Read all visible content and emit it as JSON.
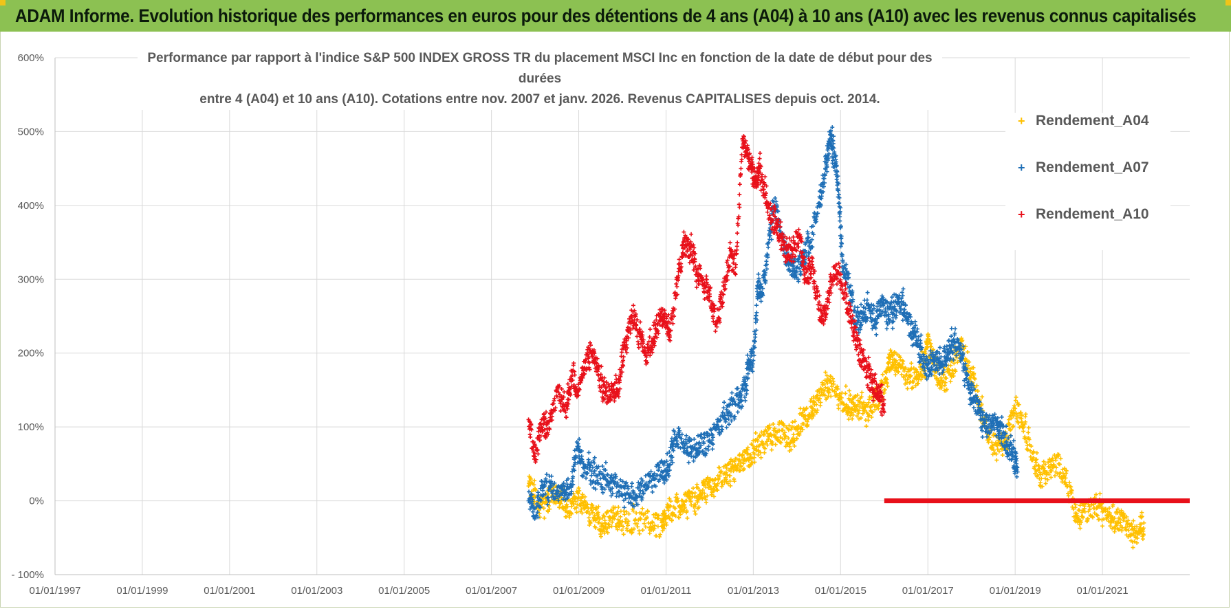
{
  "banner": {
    "title": "ADAM Informe. Evolution historique des performances en euros pour des détentions de 4 ans (A04) à 10 ans (A10) avec les revenus connus capitalisés",
    "color": "#8cc152"
  },
  "chart_data": {
    "type": "scatter",
    "title_line1": "Performance par rapport à l'indice S&P 500 INDEX GROSS TR  du placement MSCI Inc en fonction de la date de début pour des durées",
    "title_line2": "entre 4 (A04) et 10 ans (A10).  Cotations entre nov. 2007 et janv. 2026. Revenus CAPITALISES depuis oct. 2014.",
    "xlabel": "",
    "ylabel": "",
    "xlim": [
      1997.0,
      2023.0
    ],
    "ylim": [
      -100,
      600
    ],
    "grid": true,
    "legend_position": "top-right",
    "y_ticks": [
      {
        "value": 600,
        "label": "600%"
      },
      {
        "value": 500,
        "label": "500%"
      },
      {
        "value": 400,
        "label": "400%"
      },
      {
        "value": 300,
        "label": "300%"
      },
      {
        "value": 200,
        "label": "200%"
      },
      {
        "value": 100,
        "label": "100%"
      },
      {
        "value": 0,
        "label": "0%"
      },
      {
        "value": -100,
        "label": "- 100%"
      }
    ],
    "x_ticks": [
      {
        "value": 1997,
        "label": "01/01/1997"
      },
      {
        "value": 1999,
        "label": "01/01/1999"
      },
      {
        "value": 2001,
        "label": "01/01/2001"
      },
      {
        "value": 2003,
        "label": "01/01/2003"
      },
      {
        "value": 2005,
        "label": "01/01/2005"
      },
      {
        "value": 2007,
        "label": "01/01/2007"
      },
      {
        "value": 2009,
        "label": "01/01/2009"
      },
      {
        "value": 2011,
        "label": "01/01/2011"
      },
      {
        "value": 2013,
        "label": "01/01/2013"
      },
      {
        "value": 2015,
        "label": "01/01/2015"
      },
      {
        "value": 2017,
        "label": "01/01/2017"
      },
      {
        "value": 2019,
        "label": "01/01/2019"
      },
      {
        "value": 2021,
        "label": "01/01/2021"
      }
    ],
    "series": [
      {
        "name": "Rendement_A04",
        "color": "#ffc000",
        "x": [
          2007.85,
          2008.0,
          2008.2,
          2008.4,
          2008.6,
          2008.8,
          2009.0,
          2009.2,
          2009.4,
          2009.6,
          2009.8,
          2010.0,
          2010.3,
          2010.6,
          2010.9,
          2011.0,
          2011.2,
          2011.4,
          2011.6,
          2011.8,
          2012.0,
          2012.2,
          2012.4,
          2012.6,
          2012.8,
          2013.0,
          2013.2,
          2013.4,
          2013.6,
          2013.8,
          2014.0,
          2014.2,
          2014.4,
          2014.6,
          2014.8,
          2015.0,
          2015.2,
          2015.4,
          2015.6,
          2015.8,
          2016.0,
          2016.15,
          2016.3,
          2016.5,
          2016.7,
          2016.9,
          2017.0,
          2017.2,
          2017.4,
          2017.6,
          2017.8,
          2018.0,
          2018.2,
          2018.4,
          2018.6,
          2018.8,
          2019.0,
          2019.2,
          2019.4,
          2019.6,
          2019.8,
          2020.0,
          2020.2,
          2020.4,
          2020.6,
          2020.8,
          2021.0,
          2021.2,
          2021.4,
          2021.6,
          2021.8,
          2021.95
        ],
        "y": [
          20,
          5,
          -10,
          10,
          0,
          -15,
          5,
          -15,
          -25,
          -30,
          -22,
          -28,
          -25,
          -30,
          -35,
          -20,
          -10,
          -5,
          5,
          10,
          20,
          30,
          35,
          45,
          55,
          65,
          80,
          90,
          95,
          85,
          100,
          110,
          130,
          150,
          155,
          140,
          125,
          130,
          120,
          140,
          150,
          195,
          185,
          170,
          165,
          180,
          215,
          175,
          160,
          190,
          210,
          170,
          125,
          90,
          70,
          80,
          125,
          100,
          55,
          30,
          45,
          50,
          20,
          -20,
          -15,
          -10,
          -15,
          -20,
          -25,
          -40,
          -45,
          -30
        ]
      },
      {
        "name": "Rendement_A07",
        "color": "#1f6fb6",
        "x": [
          2007.85,
          2008.0,
          2008.2,
          2008.4,
          2008.6,
          2008.8,
          2008.95,
          2009.1,
          2009.3,
          2009.5,
          2009.7,
          2009.9,
          2010.1,
          2010.3,
          2010.5,
          2010.7,
          2010.9,
          2011.05,
          2011.2,
          2011.4,
          2011.6,
          2011.8,
          2012.0,
          2012.2,
          2012.4,
          2012.6,
          2012.8,
          2012.9,
          2013.0,
          2013.1,
          2013.2,
          2013.35,
          2013.5,
          2013.7,
          2013.85,
          2014.0,
          2014.15,
          2014.3,
          2014.5,
          2014.65,
          2014.75,
          2014.85,
          2014.95,
          2015.05,
          2015.2,
          2015.35,
          2015.5,
          2015.65,
          2015.8,
          2015.95,
          2016.1,
          2016.25,
          2016.4,
          2016.55,
          2016.7,
          2016.85,
          2017.0,
          2017.15,
          2017.3,
          2017.45,
          2017.6,
          2017.75,
          2017.9,
          2018.05,
          2018.2,
          2018.35,
          2018.5,
          2018.65,
          2018.8,
          2018.95,
          2019.05
        ],
        "y": [
          0,
          -10,
          20,
          10,
          20,
          10,
          70,
          45,
          40,
          30,
          25,
          20,
          10,
          5,
          20,
          30,
          40,
          45,
          90,
          80,
          70,
          75,
          80,
          100,
          120,
          130,
          150,
          190,
          190,
          290,
          280,
          350,
          410,
          340,
          320,
          310,
          330,
          350,
          400,
          450,
          490,
          470,
          420,
          310,
          290,
          240,
          255,
          260,
          245,
          270,
          250,
          260,
          270,
          240,
          230,
          195,
          180,
          190,
          185,
          200,
          215,
          200,
          160,
          140,
          110,
          100,
          105,
          95,
          80,
          60,
          45
        ]
      },
      {
        "name": "Rendement_A10",
        "color": "#e8101a",
        "x": [
          2007.85,
          2008.0,
          2008.15,
          2008.3,
          2008.5,
          2008.7,
          2008.85,
          2009.0,
          2009.15,
          2009.3,
          2009.45,
          2009.6,
          2009.75,
          2009.9,
          2010.05,
          2010.2,
          2010.35,
          2010.5,
          2010.65,
          2010.8,
          2010.95,
          2011.1,
          2011.25,
          2011.4,
          2011.55,
          2011.7,
          2011.85,
          2012.0,
          2012.15,
          2012.3,
          2012.45,
          2012.6,
          2012.75,
          2012.85,
          2012.95,
          2013.05,
          2013.15,
          2013.3,
          2013.45,
          2013.6,
          2013.75,
          2013.9,
          2014.05,
          2014.2,
          2014.35,
          2014.5,
          2014.65,
          2014.8,
          2014.95,
          2015.1,
          2015.25,
          2015.4,
          2015.55,
          2015.7,
          2015.85,
          2016.0
        ],
        "y": [
          110,
          60,
          110,
          90,
          150,
          120,
          170,
          150,
          190,
          200,
          170,
          145,
          150,
          160,
          210,
          250,
          230,
          200,
          210,
          240,
          250,
          230,
          290,
          350,
          340,
          310,
          300,
          280,
          240,
          280,
          330,
          320,
          490,
          470,
          450,
          430,
          450,
          400,
          380,
          360,
          330,
          340,
          360,
          300,
          320,
          260,
          250,
          300,
          310,
          280,
          240,
          210,
          180,
          160,
          150,
          120
        ]
      }
    ],
    "flat_segment": {
      "series": "Rendement_A10",
      "x_start": 2016.0,
      "x_end": 2023.0,
      "y": 0
    }
  }
}
